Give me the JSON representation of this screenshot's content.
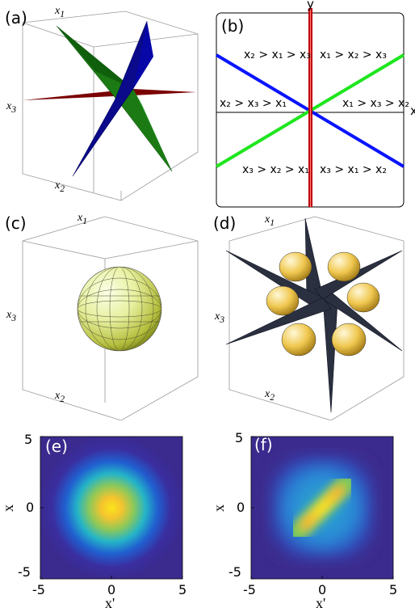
{
  "panels": {
    "a": {
      "label": "(a)",
      "axis_x1": "x",
      "axis_x1_sub": "1",
      "axis_x2": "x",
      "axis_x2_sub": "2",
      "axis_x3": "x",
      "axis_x3_sub": "3"
    },
    "b": {
      "label": "(b)",
      "axis_y": "y",
      "axis_x": "x",
      "regions": [
        {
          "id": "ul",
          "text": "x₂ > x₁ > x₃"
        },
        {
          "id": "ur",
          "text": "x₁ > x₂ > x₃"
        },
        {
          "id": "ml",
          "text": "x₂ > x₃ > x₁"
        },
        {
          "id": "mr",
          "text": "x₁ > x₃ > x₂"
        },
        {
          "id": "ll",
          "text": "x₃ > x₂ > x₁"
        },
        {
          "id": "lr",
          "text": "x₃ > x₁ > x₂"
        }
      ],
      "colors": {
        "vertical": "#c0000a",
        "blue": "#0a14ff",
        "green": "#1ee61e"
      }
    },
    "c": {
      "label": "(c)",
      "axis_x1": "x",
      "axis_x1_sub": "1",
      "axis_x2": "x",
      "axis_x2_sub": "2",
      "axis_x3": "x",
      "axis_x3_sub": "3"
    },
    "d": {
      "label": "(d)",
      "axis_x1": "x",
      "axis_x1_sub": "1",
      "axis_x2": "x",
      "axis_x2_sub": "2",
      "axis_x3": "x",
      "axis_x3_sub": "3"
    },
    "e": {
      "label": "(e)",
      "ylabel": "x",
      "xlabel": "x'",
      "xticks": [
        "-5",
        "0",
        "5"
      ],
      "yticks": [
        "5",
        "0",
        "-5"
      ]
    },
    "f": {
      "label": "(f)",
      "ylabel": "x",
      "xlabel": "x'",
      "xticks": [
        "-5",
        "0",
        "5"
      ],
      "yticks": [
        "5",
        "0",
        "-5"
      ]
    }
  }
}
